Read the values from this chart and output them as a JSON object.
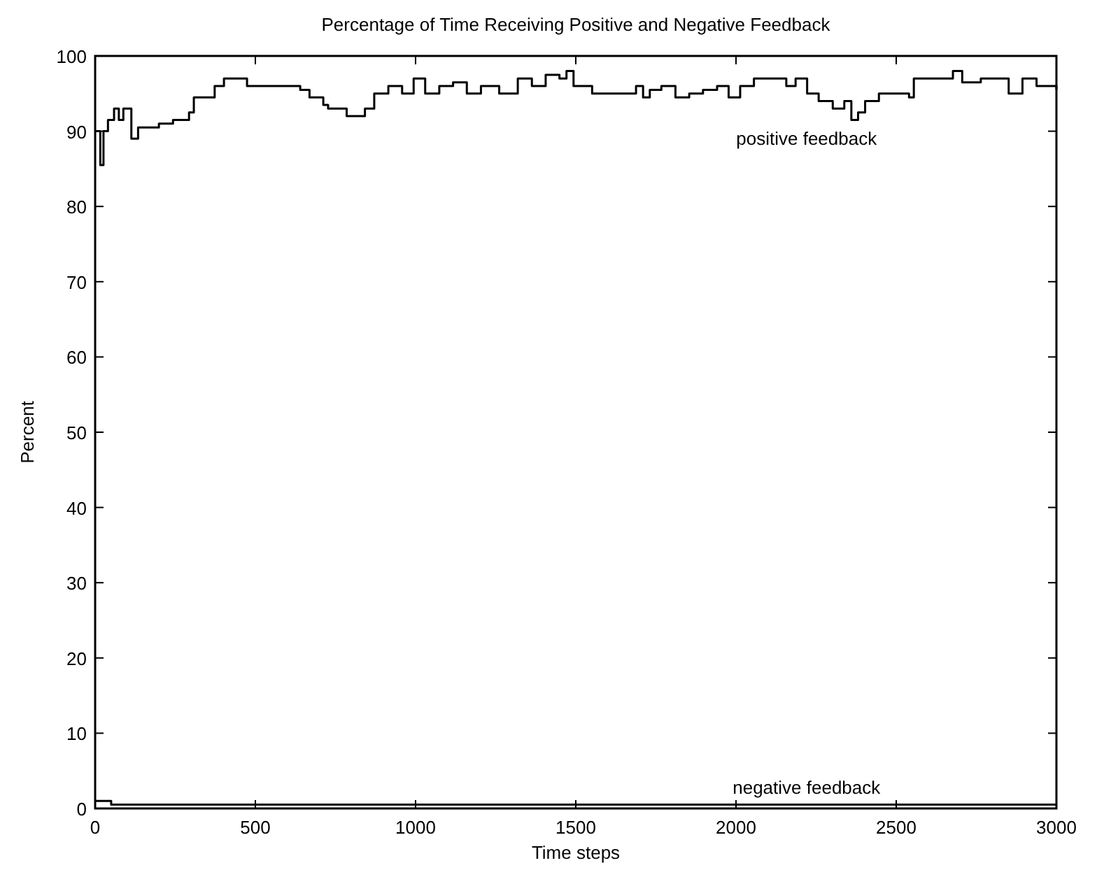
{
  "chart_data": {
    "type": "step",
    "title": "Percentage of Time Receiving Positive and Negative Feedback",
    "xlabel": "Time steps",
    "ylabel": "Percent",
    "xlim": [
      0,
      3000
    ],
    "xticks": [
      0,
      500,
      1000,
      1500,
      2000,
      2500,
      3000
    ],
    "ylim": [
      0,
      100
    ],
    "yticks": [
      0,
      10,
      20,
      30,
      40,
      50,
      60,
      70,
      80,
      90,
      100
    ],
    "grid": false,
    "legend": false,
    "series": [
      {
        "name": "positive feedback",
        "color": "#000000",
        "x": [
          0,
          4,
          16,
          26,
          40,
          59,
          74,
          88,
          100,
          113,
          134,
          171,
          199,
          243,
          293,
          308,
          344,
          373,
          402,
          438,
          474,
          590,
          640,
          669,
          712,
          727,
          785,
          842,
          871,
          915,
          958,
          994,
          1030,
          1074,
          1117,
          1160,
          1204,
          1261,
          1319,
          1363,
          1406,
          1449,
          1471,
          1493,
          1507,
          1551,
          1666,
          1688,
          1710,
          1731,
          1767,
          1811,
          1854,
          1897,
          1941,
          1977,
          2013,
          2056,
          2128,
          2157,
          2186,
          2222,
          2258,
          2302,
          2338,
          2360,
          2381,
          2403,
          2446,
          2504,
          2540,
          2555,
          2663,
          2677,
          2706,
          2764,
          2815,
          2851,
          2894,
          2938,
          3000
        ],
        "values": [
          90,
          90,
          85.5,
          90,
          91.5,
          93,
          91.5,
          93,
          93,
          89,
          90.5,
          90.5,
          91,
          91.5,
          92.5,
          94.5,
          94.5,
          96,
          97,
          97,
          96,
          96,
          95.5,
          94.5,
          93.5,
          93,
          92,
          93,
          95,
          96,
          95,
          97,
          95,
          96,
          96.5,
          95,
          96,
          95,
          97,
          96,
          97.5,
          97,
          98,
          96,
          96,
          95,
          95,
          96,
          94.5,
          95.5,
          96,
          94.5,
          95,
          95.5,
          96,
          94.5,
          96,
          97,
          97,
          96,
          97,
          95,
          94,
          93,
          94,
          91.5,
          92.5,
          94,
          95,
          95,
          94.5,
          97,
          97,
          98,
          96.5,
          97,
          97,
          95,
          97,
          96,
          95.5
        ]
      },
      {
        "name": "negative feedback",
        "color": "#000000",
        "x": [
          0,
          50,
          100,
          500,
          1000,
          1500,
          2000,
          2500,
          3000
        ],
        "values": [
          1,
          0.5,
          0.5,
          0.5,
          0.5,
          0.5,
          0.5,
          0.5,
          0.5
        ]
      }
    ]
  }
}
